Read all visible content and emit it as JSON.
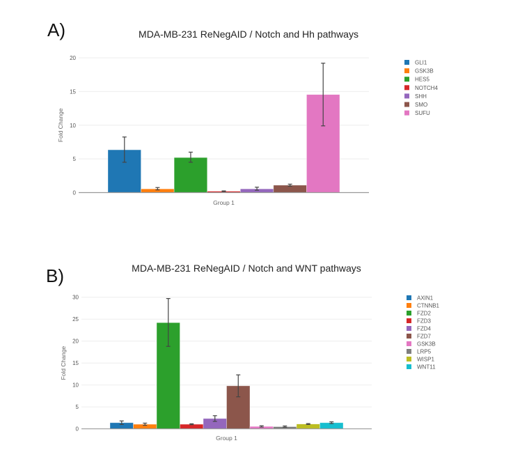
{
  "chart_data": [
    {
      "panel_label": "A)",
      "type": "bar",
      "title": "MDA-MB-231 ReNegAID / Notch and Hh pathways",
      "xlabel": "Group 1",
      "ylabel": "Fold Change",
      "ylim": [
        0,
        20
      ],
      "yticks": [
        "0",
        "5",
        "10",
        "15",
        "20"
      ],
      "grid": true,
      "legend_placement": "top-right",
      "categories": [
        "Group 1"
      ],
      "series": [
        {
          "name": "GLI1",
          "color": "#1f77b4",
          "value": 6.35,
          "err_low": 4.5,
          "err_high": 8.25
        },
        {
          "name": "GSK3B",
          "color": "#ff7f0e",
          "value": 0.55,
          "err_low": 0.4,
          "err_high": 0.75
        },
        {
          "name": "HES5",
          "color": "#2ca02c",
          "value": 5.2,
          "err_low": 4.5,
          "err_high": 6.0
        },
        {
          "name": "NOTCH4",
          "color": "#d62728",
          "value": 0.2,
          "err_low": 0.15,
          "err_high": 0.25
        },
        {
          "name": "SHH",
          "color": "#9467bd",
          "value": 0.55,
          "err_low": 0.35,
          "err_high": 0.8
        },
        {
          "name": "SMO",
          "color": "#8c564b",
          "value": 1.1,
          "err_low": 0.95,
          "err_high": 1.25
        },
        {
          "name": "SUFU",
          "color": "#e377c2",
          "value": 14.55,
          "err_low": 9.9,
          "err_high": 19.2
        }
      ]
    },
    {
      "panel_label": "B)",
      "type": "bar",
      "title": "MDA-MB-231 ReNegAID / Notch and WNT pathways",
      "xlabel": "Group 1",
      "ylabel": "Fold Change",
      "ylim": [
        0,
        30
      ],
      "yticks": [
        "0",
        "5",
        "10",
        "15",
        "20",
        "25",
        "30"
      ],
      "grid": true,
      "legend_placement": "top-right",
      "categories": [
        "Group 1"
      ],
      "series": [
        {
          "name": "AXIN1",
          "color": "#1f77b4",
          "value": 1.4,
          "err_low": 1.0,
          "err_high": 1.8
        },
        {
          "name": "CTNNB1",
          "color": "#ff7f0e",
          "value": 1.05,
          "err_low": 0.8,
          "err_high": 1.3
        },
        {
          "name": "FZD2",
          "color": "#2ca02c",
          "value": 24.2,
          "err_low": 18.8,
          "err_high": 29.7
        },
        {
          "name": "FZD3",
          "color": "#d62728",
          "value": 1.05,
          "err_low": 0.95,
          "err_high": 1.15
        },
        {
          "name": "FZD4",
          "color": "#9467bd",
          "value": 2.35,
          "err_low": 1.7,
          "err_high": 3.0
        },
        {
          "name": "FZD7",
          "color": "#8c564b",
          "value": 9.8,
          "err_low": 7.3,
          "err_high": 12.3
        },
        {
          "name": "GSK3B",
          "color": "#e377c2",
          "value": 0.55,
          "err_low": 0.4,
          "err_high": 0.7
        },
        {
          "name": "LRP5",
          "color": "#7f7f7f",
          "value": 0.5,
          "err_low": 0.35,
          "err_high": 0.65
        },
        {
          "name": "WISP1",
          "color": "#bcbd22",
          "value": 1.1,
          "err_low": 1.0,
          "err_high": 1.2
        },
        {
          "name": "WNT11",
          "color": "#17becf",
          "value": 1.4,
          "err_low": 1.2,
          "err_high": 1.6
        }
      ]
    }
  ]
}
